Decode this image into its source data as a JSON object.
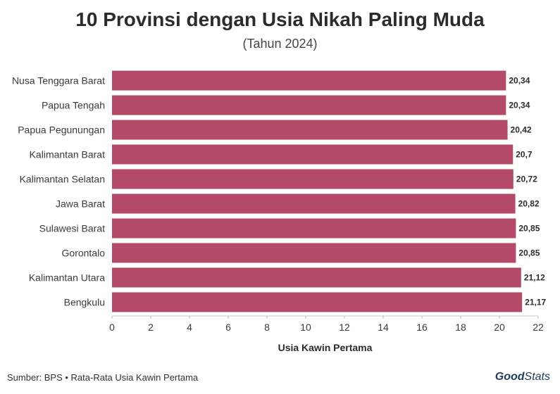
{
  "header": {
    "title": "10 Provinsi dengan Usia Nikah Paling Muda",
    "subtitle": "(Tahun 2024)"
  },
  "chart_data": {
    "type": "bar",
    "orientation": "horizontal",
    "categories": [
      "Nusa Tenggara Barat",
      "Papua Tengah",
      "Papua Pegunungan",
      "Kalimantan Barat",
      "Kalimantan Selatan",
      "Jawa Barat",
      "Sulawesi Barat",
      "Gorontalo",
      "Kalimantan Utara",
      "Bengkulu"
    ],
    "values": [
      20.34,
      20.34,
      20.42,
      20.7,
      20.72,
      20.82,
      20.85,
      20.85,
      21.12,
      21.17
    ],
    "value_labels": [
      "20,34",
      "20,34",
      "20,42",
      "20,7",
      "20,72",
      "20,82",
      "20,85",
      "20,85",
      "21,12",
      "21,17"
    ],
    "xlabel": "Usia Kawin Pertama",
    "ylabel": "",
    "xlim": [
      0,
      22
    ],
    "xticks": [
      0,
      2,
      4,
      6,
      8,
      10,
      12,
      14,
      16,
      18,
      20,
      22
    ],
    "bar_color": "#b24a68",
    "grid": false
  },
  "footer": {
    "source": "Sumber: BPS • Rata-Rata Usia Kawin Pertama",
    "brand_part1": "Good",
    "brand_part2": "Stats"
  }
}
